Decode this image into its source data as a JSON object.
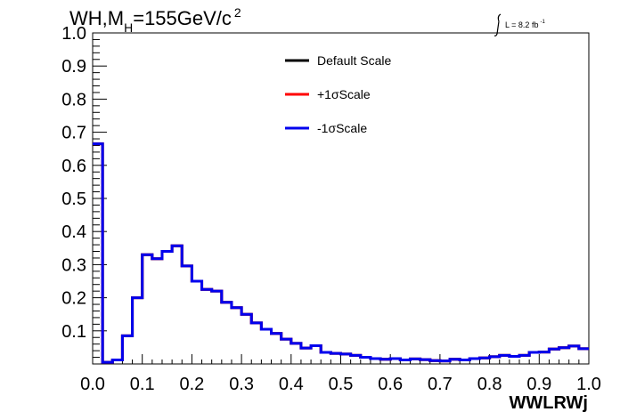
{
  "chart_data": {
    "type": "line",
    "title": "WH,M",
    "title_subscript": "H",
    "title_rest": "=155GeV/c",
    "title_superscript": "2",
    "luminosity": {
      "prefix": "L = 8.2 fb",
      "superscript": "-1"
    },
    "xlabel": "WWLRWj",
    "ylabel": "",
    "xlim": [
      0.0,
      1.0
    ],
    "ylim": [
      0.0,
      1.0
    ],
    "xticks": [
      "0.0",
      "0.1",
      "0.2",
      "0.3",
      "0.4",
      "0.5",
      "0.6",
      "0.7",
      "0.8",
      "0.9",
      "1.0"
    ],
    "yticks": [
      "0.1",
      "0.2",
      "0.3",
      "0.4",
      "0.5",
      "0.6",
      "0.7",
      "0.8",
      "0.9",
      "1.0"
    ],
    "grid": false,
    "legend_position": "top-center",
    "bin_edges": [
      0.0,
      0.02,
      0.04,
      0.06,
      0.08,
      0.1,
      0.12,
      0.14,
      0.16,
      0.18,
      0.2,
      0.22,
      0.24,
      0.26,
      0.28,
      0.3,
      0.32,
      0.34,
      0.36,
      0.38,
      0.4,
      0.42,
      0.44,
      0.46,
      0.48,
      0.5,
      0.52,
      0.54,
      0.56,
      0.58,
      0.6,
      0.62,
      0.64,
      0.66,
      0.68,
      0.7,
      0.72,
      0.74,
      0.76,
      0.78,
      0.8,
      0.82,
      0.84,
      0.86,
      0.88,
      0.9,
      0.92,
      0.94,
      0.96,
      0.98,
      1.0
    ],
    "series": [
      {
        "name": "Default Scale",
        "color": "#000000",
        "values": [
          0.665,
          0.005,
          0.012,
          0.085,
          0.2,
          0.33,
          0.318,
          0.34,
          0.357,
          0.296,
          0.25,
          0.225,
          0.22,
          0.186,
          0.17,
          0.15,
          0.124,
          0.105,
          0.092,
          0.075,
          0.062,
          0.048,
          0.055,
          0.035,
          0.032,
          0.03,
          0.026,
          0.02,
          0.016,
          0.014,
          0.016,
          0.012,
          0.015,
          0.013,
          0.01,
          0.009,
          0.014,
          0.012,
          0.016,
          0.018,
          0.022,
          0.026,
          0.023,
          0.026,
          0.035,
          0.036,
          0.045,
          0.049,
          0.054,
          0.046
        ]
      },
      {
        "name": "+1σScale",
        "color": "#ff0000",
        "values": [
          0.665,
          0.005,
          0.012,
          0.085,
          0.2,
          0.33,
          0.318,
          0.34,
          0.357,
          0.296,
          0.25,
          0.225,
          0.22,
          0.186,
          0.17,
          0.15,
          0.124,
          0.105,
          0.092,
          0.075,
          0.062,
          0.048,
          0.055,
          0.035,
          0.032,
          0.03,
          0.026,
          0.02,
          0.016,
          0.014,
          0.016,
          0.012,
          0.015,
          0.013,
          0.01,
          0.009,
          0.014,
          0.012,
          0.016,
          0.018,
          0.022,
          0.026,
          0.023,
          0.026,
          0.035,
          0.036,
          0.045,
          0.049,
          0.054,
          0.046
        ]
      },
      {
        "name": "-1σScale",
        "color": "#0000ee",
        "values": [
          0.665,
          0.005,
          0.012,
          0.085,
          0.2,
          0.33,
          0.318,
          0.34,
          0.357,
          0.296,
          0.25,
          0.225,
          0.22,
          0.186,
          0.17,
          0.15,
          0.124,
          0.105,
          0.092,
          0.075,
          0.062,
          0.048,
          0.055,
          0.035,
          0.032,
          0.03,
          0.026,
          0.02,
          0.016,
          0.014,
          0.016,
          0.012,
          0.015,
          0.013,
          0.01,
          0.009,
          0.014,
          0.012,
          0.016,
          0.018,
          0.022,
          0.026,
          0.023,
          0.026,
          0.035,
          0.036,
          0.045,
          0.049,
          0.054,
          0.046
        ]
      }
    ]
  }
}
